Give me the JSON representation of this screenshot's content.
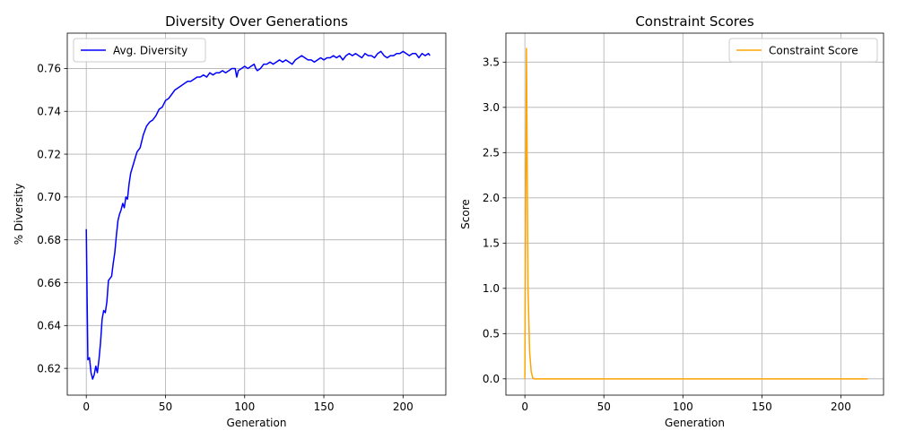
{
  "chart_data": [
    {
      "type": "line",
      "title": "Diversity Over Generations",
      "xlabel": "Generation",
      "ylabel": "% Diversity",
      "xlim": [
        -12,
        227
      ],
      "ylim": [
        0.6075,
        0.7765
      ],
      "xticks": [
        0,
        50,
        100,
        150,
        200
      ],
      "xtick_labels": [
        "0",
        "50",
        "100",
        "150",
        "200"
      ],
      "yticks": [
        0.62,
        0.64,
        0.66,
        0.68,
        0.7,
        0.72,
        0.74,
        0.76
      ],
      "ytick_labels": [
        "0.62",
        "0.64",
        "0.66",
        "0.68",
        "0.70",
        "0.72",
        "0.74",
        "0.76"
      ],
      "grid": true,
      "legend_position": "top-left",
      "series": [
        {
          "name": "Avg. Diversity",
          "color": "#0000ff",
          "x": [
            0,
            1,
            2,
            3,
            4,
            5,
            6,
            7,
            8,
            9,
            10,
            11,
            12,
            13,
            14,
            15,
            16,
            17,
            18,
            19,
            20,
            21,
            22,
            23,
            24,
            25,
            26,
            27,
            28,
            30,
            32,
            34,
            36,
            38,
            40,
            42,
            44,
            46,
            48,
            50,
            52,
            54,
            56,
            58,
            60,
            62,
            64,
            66,
            68,
            70,
            72,
            74,
            76,
            78,
            80,
            82,
            84,
            86,
            88,
            90,
            92,
            94,
            95,
            96,
            98,
            100,
            102,
            104,
            106,
            107,
            108,
            110,
            112,
            114,
            116,
            118,
            120,
            122,
            124,
            126,
            128,
            130,
            132,
            134,
            136,
            138,
            140,
            142,
            144,
            146,
            148,
            150,
            152,
            154,
            156,
            158,
            160,
            162,
            164,
            166,
            168,
            170,
            172,
            174,
            176,
            178,
            180,
            182,
            184,
            186,
            188,
            190,
            192,
            194,
            196,
            198,
            200,
            202,
            204,
            206,
            208,
            210,
            212,
            214,
            216,
            217
          ],
          "y": [
            0.685,
            0.624,
            0.625,
            0.618,
            0.615,
            0.617,
            0.621,
            0.618,
            0.624,
            0.632,
            0.643,
            0.647,
            0.646,
            0.651,
            0.661,
            0.662,
            0.663,
            0.669,
            0.674,
            0.682,
            0.689,
            0.692,
            0.694,
            0.697,
            0.695,
            0.7,
            0.699,
            0.706,
            0.711,
            0.716,
            0.721,
            0.723,
            0.729,
            0.733,
            0.735,
            0.736,
            0.738,
            0.741,
            0.742,
            0.745,
            0.746,
            0.748,
            0.75,
            0.751,
            0.752,
            0.753,
            0.754,
            0.754,
            0.755,
            0.756,
            0.756,
            0.757,
            0.756,
            0.758,
            0.757,
            0.758,
            0.758,
            0.759,
            0.758,
            0.759,
            0.76,
            0.76,
            0.756,
            0.759,
            0.76,
            0.761,
            0.76,
            0.761,
            0.762,
            0.76,
            0.759,
            0.76,
            0.762,
            0.762,
            0.763,
            0.762,
            0.763,
            0.764,
            0.763,
            0.764,
            0.763,
            0.762,
            0.764,
            0.765,
            0.766,
            0.765,
            0.764,
            0.764,
            0.763,
            0.764,
            0.765,
            0.764,
            0.765,
            0.765,
            0.766,
            0.765,
            0.766,
            0.764,
            0.766,
            0.767,
            0.766,
            0.767,
            0.766,
            0.765,
            0.767,
            0.766,
            0.766,
            0.765,
            0.767,
            0.768,
            0.766,
            0.765,
            0.766,
            0.766,
            0.767,
            0.767,
            0.768,
            0.767,
            0.766,
            0.767,
            0.767,
            0.765,
            0.767,
            0.766,
            0.767,
            0.766
          ]
        }
      ]
    },
    {
      "type": "line",
      "title": "Constraint Scores",
      "xlabel": "Generation",
      "ylabel": "Score",
      "xlim": [
        -12,
        227
      ],
      "ylim": [
        -0.18,
        3.82
      ],
      "xticks": [
        0,
        50,
        100,
        150,
        200
      ],
      "xtick_labels": [
        "0",
        "50",
        "100",
        "150",
        "200"
      ],
      "yticks": [
        0.0,
        0.5,
        1.0,
        1.5,
        2.0,
        2.5,
        3.0,
        3.5
      ],
      "ytick_labels": [
        "0.0",
        "0.5",
        "1.0",
        "1.5",
        "2.0",
        "2.5",
        "3.0",
        "3.5"
      ],
      "grid": true,
      "legend_position": "top-right",
      "series": [
        {
          "name": "Constraint Score",
          "color": "#ffa500",
          "x": [
            0,
            1,
            2,
            3,
            4,
            5,
            6,
            10,
            50,
            100,
            150,
            200,
            217
          ],
          "y": [
            0.0,
            3.65,
            1.0,
            0.3,
            0.08,
            0.01,
            0.0,
            0.0,
            0.0,
            0.0,
            0.0,
            0.0,
            0.0
          ]
        }
      ]
    }
  ]
}
